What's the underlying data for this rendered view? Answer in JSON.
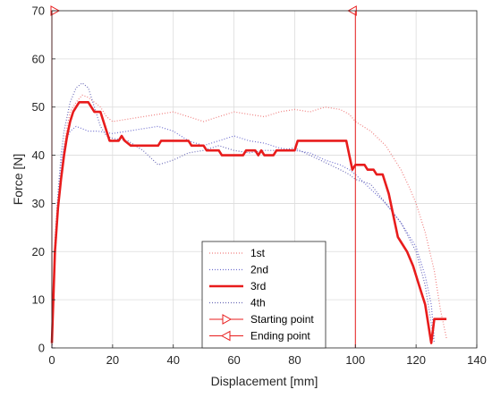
{
  "chart_data": {
    "type": "line",
    "title": "",
    "xlabel": "Displacement [mm]",
    "ylabel": "Force [N]",
    "xlim": [
      0,
      140
    ],
    "ylim": [
      0,
      70
    ],
    "xticks": [
      0,
      20,
      40,
      60,
      80,
      100,
      120,
      140
    ],
    "yticks": [
      0,
      10,
      20,
      30,
      40,
      50,
      60,
      70
    ],
    "grid": true,
    "legend_position": "bottom-center",
    "series": [
      {
        "name": "1st",
        "color": "#f08080",
        "style": "dotted",
        "points": [
          [
            0,
            0
          ],
          [
            1,
            18
          ],
          [
            2,
            28
          ],
          [
            3,
            36
          ],
          [
            4,
            42
          ],
          [
            5,
            46
          ],
          [
            6,
            49
          ],
          [
            8,
            51
          ],
          [
            10,
            52.5
          ],
          [
            12,
            52
          ],
          [
            14,
            51
          ],
          [
            16,
            50
          ],
          [
            18,
            48
          ],
          [
            20,
            47
          ],
          [
            25,
            47.5
          ],
          [
            30,
            48
          ],
          [
            35,
            48.5
          ],
          [
            40,
            49
          ],
          [
            45,
            48
          ],
          [
            50,
            47
          ],
          [
            55,
            48
          ],
          [
            60,
            49
          ],
          [
            65,
            48.5
          ],
          [
            70,
            48
          ],
          [
            75,
            49
          ],
          [
            80,
            49.5
          ],
          [
            85,
            49
          ],
          [
            90,
            50
          ],
          [
            95,
            49.5
          ],
          [
            98,
            48.5
          ],
          [
            100,
            47
          ],
          [
            105,
            45
          ],
          [
            110,
            42
          ],
          [
            115,
            37
          ],
          [
            118,
            33
          ],
          [
            120,
            30
          ],
          [
            123,
            24
          ],
          [
            126,
            16
          ],
          [
            128,
            8
          ],
          [
            130,
            2
          ]
        ]
      },
      {
        "name": "2nd",
        "color": "#7070d0",
        "style": "dotted",
        "points": [
          [
            0,
            0
          ],
          [
            1,
            20
          ],
          [
            2,
            30
          ],
          [
            3,
            38
          ],
          [
            4,
            42
          ],
          [
            6,
            45
          ],
          [
            8,
            46
          ],
          [
            10,
            45.5
          ],
          [
            12,
            45
          ],
          [
            15,
            45
          ],
          [
            20,
            44.5
          ],
          [
            25,
            45
          ],
          [
            30,
            45.5
          ],
          [
            35,
            46
          ],
          [
            40,
            45
          ],
          [
            45,
            43
          ],
          [
            50,
            42
          ],
          [
            55,
            43
          ],
          [
            60,
            44
          ],
          [
            65,
            43
          ],
          [
            70,
            42.5
          ],
          [
            75,
            41.5
          ],
          [
            80,
            41
          ],
          [
            85,
            40.5
          ],
          [
            90,
            39
          ],
          [
            95,
            38
          ],
          [
            98,
            37
          ],
          [
            100,
            36
          ],
          [
            105,
            33
          ],
          [
            110,
            30
          ],
          [
            115,
            26
          ],
          [
            120,
            21
          ],
          [
            123,
            15
          ],
          [
            125,
            9
          ],
          [
            126,
            2
          ]
        ]
      },
      {
        "name": "3rd",
        "color": "#e81c1c",
        "style": "solid",
        "points": [
          [
            0,
            1
          ],
          [
            1,
            20
          ],
          [
            2,
            29
          ],
          [
            3,
            35
          ],
          [
            4,
            40
          ],
          [
            5,
            44
          ],
          [
            6,
            47
          ],
          [
            7,
            49
          ],
          [
            8,
            50
          ],
          [
            9,
            51
          ],
          [
            12,
            51
          ],
          [
            13,
            50
          ],
          [
            14,
            49
          ],
          [
            16,
            49
          ],
          [
            17,
            47
          ],
          [
            18,
            45
          ],
          [
            19,
            43
          ],
          [
            22,
            43
          ],
          [
            23,
            44
          ],
          [
            24,
            43
          ],
          [
            26,
            42
          ],
          [
            35,
            42
          ],
          [
            36,
            43
          ],
          [
            45,
            43
          ],
          [
            46,
            42
          ],
          [
            50,
            42
          ],
          [
            51,
            41
          ],
          [
            55,
            41
          ],
          [
            56,
            40
          ],
          [
            63,
            40
          ],
          [
            64,
            41
          ],
          [
            67,
            41
          ],
          [
            68,
            40
          ],
          [
            69,
            41
          ],
          [
            70,
            40
          ],
          [
            73,
            40
          ],
          [
            74,
            41
          ],
          [
            80,
            41
          ],
          [
            81,
            43
          ],
          [
            97,
            43
          ],
          [
            98,
            40
          ],
          [
            99,
            37
          ],
          [
            100,
            38
          ],
          [
            103,
            38
          ],
          [
            104,
            37
          ],
          [
            106,
            37
          ],
          [
            107,
            36
          ],
          [
            109,
            36
          ],
          [
            110,
            34
          ],
          [
            111,
            32
          ],
          [
            112,
            29
          ],
          [
            113,
            26
          ],
          [
            114,
            23
          ],
          [
            115,
            22
          ],
          [
            117,
            20
          ],
          [
            119,
            17
          ],
          [
            121,
            13
          ],
          [
            123,
            9
          ],
          [
            124,
            5
          ],
          [
            125,
            1
          ],
          [
            126,
            6
          ],
          [
            130,
            6
          ]
        ]
      },
      {
        "name": "4th",
        "color": "#6b6bb8",
        "style": "dotted",
        "points": [
          [
            0,
            0
          ],
          [
            1,
            22
          ],
          [
            2,
            32
          ],
          [
            3,
            40
          ],
          [
            4,
            45
          ],
          [
            5,
            48
          ],
          [
            6,
            51
          ],
          [
            8,
            54
          ],
          [
            10,
            55
          ],
          [
            12,
            54
          ],
          [
            14,
            50
          ],
          [
            16,
            46
          ],
          [
            18,
            44
          ],
          [
            20,
            43.5
          ],
          [
            25,
            43
          ],
          [
            30,
            41
          ],
          [
            35,
            38
          ],
          [
            40,
            39
          ],
          [
            45,
            40.5
          ],
          [
            50,
            41
          ],
          [
            55,
            42
          ],
          [
            60,
            41
          ],
          [
            65,
            40.5
          ],
          [
            70,
            41
          ],
          [
            75,
            41
          ],
          [
            80,
            41.5
          ],
          [
            85,
            40
          ],
          [
            90,
            38.5
          ],
          [
            95,
            37
          ],
          [
            98,
            36
          ],
          [
            100,
            35
          ],
          [
            105,
            34
          ],
          [
            110,
            30
          ],
          [
            115,
            26
          ],
          [
            120,
            20
          ],
          [
            123,
            13
          ],
          [
            125,
            5
          ],
          [
            126,
            1
          ]
        ]
      }
    ],
    "markers": [
      {
        "name": "Starting point",
        "x": 0,
        "color": "#e81c1c",
        "marker": "triangle-right"
      },
      {
        "name": "Ending point",
        "x": 100,
        "color": "#e81c1c",
        "marker": "triangle-left"
      }
    ]
  }
}
